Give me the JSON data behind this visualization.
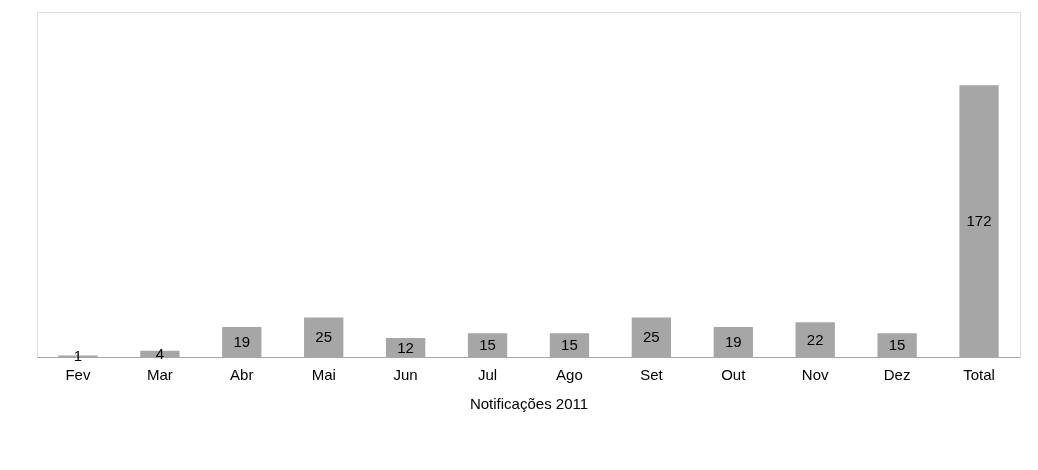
{
  "chart_data": {
    "type": "bar",
    "xlabel": "Notificações 2011",
    "categories": [
      "Fev",
      "Mar",
      "Abr",
      "Mai",
      "Jun",
      "Jul",
      "Ago",
      "Set",
      "Out",
      "Nov",
      "Dez",
      "Total"
    ],
    "values": [
      1,
      4,
      19,
      25,
      12,
      15,
      15,
      25,
      19,
      22,
      15,
      172
    ],
    "color": "#a6a6a6",
    "data_labels": true
  }
}
